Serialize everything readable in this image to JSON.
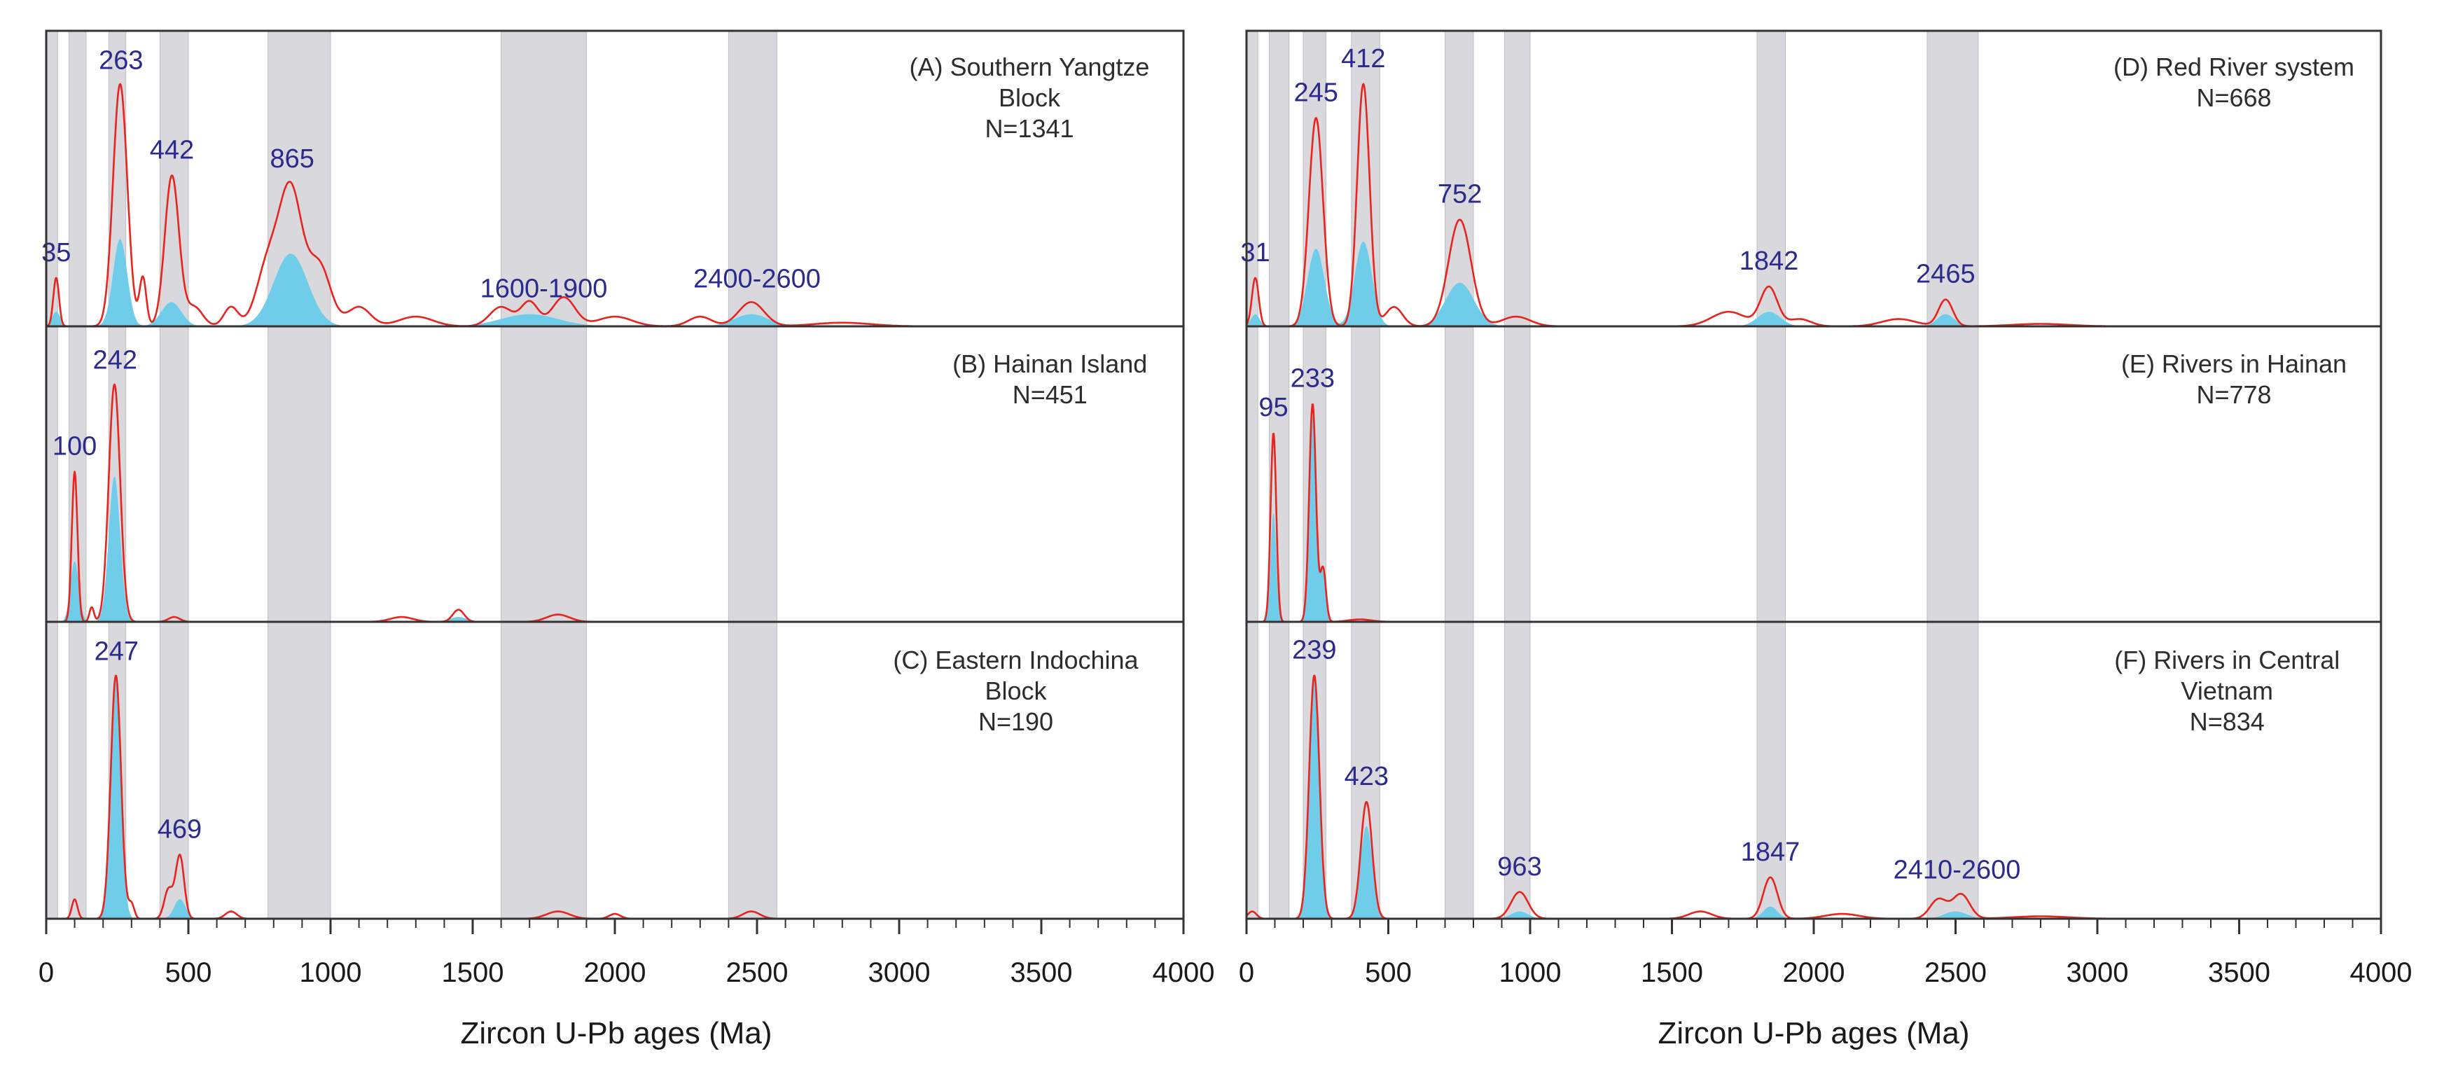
{
  "chart_data": [
    {
      "type": "area",
      "column": "left",
      "xlim": [
        0,
        4000
      ],
      "x_ticks": [
        0,
        500,
        1000,
        1500,
        2000,
        2500,
        3000,
        3500,
        4000
      ],
      "x_tick_labels": [
        "0",
        "500",
        "1000",
        "1500",
        "2000",
        "2500",
        "3000",
        "3500",
        "4000"
      ],
      "xlabel": "Zircon U-Pb ages (Ma)",
      "shaded_ranges": [
        [
          0,
          40
        ],
        [
          80,
          140
        ],
        [
          220,
          280
        ],
        [
          400,
          500
        ],
        [
          780,
          1000
        ],
        [
          1600,
          1900
        ],
        [
          2400,
          2570
        ]
      ],
      "panels": [
        {
          "label_lines": [
            "(A) Southern Yangtze",
            "Block",
            "N=1341"
          ],
          "n": 1341,
          "peak_labels": [
            {
              "age": 35,
              "text": "35"
            },
            {
              "age": 263,
              "text": "263"
            },
            {
              "age": 442,
              "text": "442"
            },
            {
              "age": 865,
              "text": "865"
            },
            {
              "age": 1750,
              "text": "1600-1900"
            },
            {
              "age": 2500,
              "text": "2400-2600"
            }
          ],
          "pdp_peaks": [
            {
              "age": 35,
              "h": 0.2,
              "w": 10
            },
            {
              "age": 260,
              "h": 1.0,
              "w": 25
            },
            {
              "age": 340,
              "h": 0.2,
              "w": 12
            },
            {
              "age": 442,
              "h": 0.62,
              "w": 25
            },
            {
              "age": 520,
              "h": 0.08,
              "w": 30
            },
            {
              "age": 650,
              "h": 0.08,
              "w": 25
            },
            {
              "age": 780,
              "h": 0.25,
              "w": 40
            },
            {
              "age": 860,
              "h": 0.55,
              "w": 40
            },
            {
              "age": 960,
              "h": 0.25,
              "w": 40
            },
            {
              "age": 1100,
              "h": 0.08,
              "w": 40
            },
            {
              "age": 1300,
              "h": 0.04,
              "w": 60
            },
            {
              "age": 1600,
              "h": 0.08,
              "w": 40
            },
            {
              "age": 1700,
              "h": 0.1,
              "w": 30
            },
            {
              "age": 1820,
              "h": 0.12,
              "w": 40
            },
            {
              "age": 2000,
              "h": 0.04,
              "w": 60
            },
            {
              "age": 2300,
              "h": 0.04,
              "w": 40
            },
            {
              "age": 2480,
              "h": 0.1,
              "w": 45
            },
            {
              "age": 2800,
              "h": 0.015,
              "w": 100
            }
          ],
          "kde_peaks": [
            {
              "age": 35,
              "h": 0.06,
              "w": 15
            },
            {
              "age": 260,
              "h": 0.36,
              "w": 25
            },
            {
              "age": 440,
              "h": 0.1,
              "w": 35
            },
            {
              "age": 860,
              "h": 0.3,
              "w": 60
            },
            {
              "age": 1700,
              "h": 0.05,
              "w": 100
            },
            {
              "age": 2480,
              "h": 0.05,
              "w": 60
            }
          ]
        },
        {
          "label_lines": [
            "(B) Hainan Island",
            "N=451"
          ],
          "n": 451,
          "peak_labels": [
            {
              "age": 100,
              "text": "100"
            },
            {
              "age": 242,
              "text": "242"
            }
          ],
          "pdp_peaks": [
            {
              "age": 100,
              "h": 0.62,
              "w": 10
            },
            {
              "age": 160,
              "h": 0.06,
              "w": 8
            },
            {
              "age": 240,
              "h": 0.98,
              "w": 20
            },
            {
              "age": 450,
              "h": 0.02,
              "w": 20
            },
            {
              "age": 1250,
              "h": 0.02,
              "w": 40
            },
            {
              "age": 1450,
              "h": 0.05,
              "w": 20
            },
            {
              "age": 1800,
              "h": 0.03,
              "w": 40
            }
          ],
          "kde_peaks": [
            {
              "age": 100,
              "h": 0.25,
              "w": 15
            },
            {
              "age": 240,
              "h": 0.6,
              "w": 20
            },
            {
              "age": 1450,
              "h": 0.02,
              "w": 30
            }
          ]
        },
        {
          "label_lines": [
            "(C)  Eastern Indochina",
            "Block",
            "N=190"
          ],
          "n": 190,
          "peak_labels": [
            {
              "age": 247,
              "text": "247"
            },
            {
              "age": 469,
              "text": "469"
            }
          ],
          "pdp_peaks": [
            {
              "age": 100,
              "h": 0.08,
              "w": 10
            },
            {
              "age": 245,
              "h": 1.0,
              "w": 18
            },
            {
              "age": 300,
              "h": 0.06,
              "w": 10
            },
            {
              "age": 430,
              "h": 0.12,
              "w": 15
            },
            {
              "age": 470,
              "h": 0.26,
              "w": 15
            },
            {
              "age": 650,
              "h": 0.03,
              "w": 20
            },
            {
              "age": 1800,
              "h": 0.03,
              "w": 40
            },
            {
              "age": 2000,
              "h": 0.02,
              "w": 20
            },
            {
              "age": 2480,
              "h": 0.03,
              "w": 30
            }
          ],
          "kde_peaks": [
            {
              "age": 245,
              "h": 0.98,
              "w": 18
            },
            {
              "age": 470,
              "h": 0.08,
              "w": 20
            }
          ]
        }
      ]
    },
    {
      "type": "area",
      "column": "right",
      "xlim": [
        0,
        4000
      ],
      "x_ticks": [
        0,
        500,
        1000,
        1500,
        2000,
        2500,
        3000,
        3500,
        4000
      ],
      "x_tick_labels": [
        "0",
        "500",
        "1000",
        "1500",
        "2000",
        "2500",
        "3000",
        "3500",
        "4000"
      ],
      "xlabel": "Zircon U-Pb ages (Ma)",
      "shaded_ranges": [
        [
          0,
          40
        ],
        [
          80,
          150
        ],
        [
          200,
          280
        ],
        [
          370,
          470
        ],
        [
          700,
          800
        ],
        [
          910,
          1000
        ],
        [
          1800,
          1900
        ],
        [
          2400,
          2580
        ]
      ],
      "panels": [
        {
          "label_lines": [
            "(D) Red River system",
            "N=668"
          ],
          "n": 668,
          "peak_labels": [
            {
              "age": 31,
              "text": "31"
            },
            {
              "age": 245,
              "text": "245"
            },
            {
              "age": 412,
              "text": "412"
            },
            {
              "age": 752,
              "text": "752"
            },
            {
              "age": 1842,
              "text": "1842"
            },
            {
              "age": 2465,
              "text": "2465"
            }
          ],
          "pdp_peaks": [
            {
              "age": 31,
              "h": 0.2,
              "w": 12
            },
            {
              "age": 245,
              "h": 0.86,
              "w": 25
            },
            {
              "age": 412,
              "h": 1.0,
              "w": 22
            },
            {
              "age": 520,
              "h": 0.08,
              "w": 30
            },
            {
              "age": 752,
              "h": 0.44,
              "w": 40
            },
            {
              "age": 950,
              "h": 0.04,
              "w": 50
            },
            {
              "age": 1700,
              "h": 0.06,
              "w": 60
            },
            {
              "age": 1842,
              "h": 0.16,
              "w": 30
            },
            {
              "age": 1950,
              "h": 0.03,
              "w": 40
            },
            {
              "age": 2300,
              "h": 0.03,
              "w": 60
            },
            {
              "age": 2465,
              "h": 0.11,
              "w": 25
            },
            {
              "age": 2800,
              "h": 0.01,
              "w": 100
            }
          ],
          "kde_peaks": [
            {
              "age": 31,
              "h": 0.05,
              "w": 15
            },
            {
              "age": 245,
              "h": 0.32,
              "w": 30
            },
            {
              "age": 412,
              "h": 0.35,
              "w": 30
            },
            {
              "age": 752,
              "h": 0.18,
              "w": 50
            },
            {
              "age": 1842,
              "h": 0.06,
              "w": 40
            },
            {
              "age": 2465,
              "h": 0.05,
              "w": 30
            }
          ]
        },
        {
          "label_lines": [
            "(E) Rivers in Hainan",
            "N=778"
          ],
          "n": 778,
          "peak_labels": [
            {
              "age": 95,
              "text": "95"
            },
            {
              "age": 233,
              "text": "233"
            }
          ],
          "pdp_peaks": [
            {
              "age": 95,
              "h": 0.78,
              "w": 10
            },
            {
              "age": 233,
              "h": 0.9,
              "w": 12
            },
            {
              "age": 270,
              "h": 0.22,
              "w": 10
            },
            {
              "age": 400,
              "h": 0.01,
              "w": 40
            }
          ],
          "kde_peaks": [
            {
              "age": 95,
              "h": 0.45,
              "w": 10
            },
            {
              "age": 233,
              "h": 0.85,
              "w": 12
            },
            {
              "age": 270,
              "h": 0.22,
              "w": 10
            }
          ]
        },
        {
          "label_lines": [
            "(F) Rivers in Central",
            "Vietnam",
            "N=834"
          ],
          "n": 834,
          "peak_labels": [
            {
              "age": 239,
              "text": "239"
            },
            {
              "age": 423,
              "text": "423"
            },
            {
              "age": 963,
              "text": "963"
            },
            {
              "age": 1847,
              "text": "1847"
            },
            {
              "age": 2505,
              "text": "2410-2600"
            }
          ],
          "pdp_peaks": [
            {
              "age": 20,
              "h": 0.03,
              "w": 15
            },
            {
              "age": 239,
              "h": 1.0,
              "w": 18
            },
            {
              "age": 423,
              "h": 0.48,
              "w": 20
            },
            {
              "age": 963,
              "h": 0.11,
              "w": 30
            },
            {
              "age": 1600,
              "h": 0.03,
              "w": 40
            },
            {
              "age": 1847,
              "h": 0.17,
              "w": 25
            },
            {
              "age": 2100,
              "h": 0.02,
              "w": 60
            },
            {
              "age": 2440,
              "h": 0.08,
              "w": 30
            },
            {
              "age": 2520,
              "h": 0.1,
              "w": 30
            },
            {
              "age": 2800,
              "h": 0.01,
              "w": 100
            }
          ],
          "kde_peaks": [
            {
              "age": 239,
              "h": 0.98,
              "w": 18
            },
            {
              "age": 423,
              "h": 0.38,
              "w": 22
            },
            {
              "age": 963,
              "h": 0.03,
              "w": 30
            },
            {
              "age": 1847,
              "h": 0.05,
              "w": 25
            },
            {
              "age": 2500,
              "h": 0.03,
              "w": 40
            }
          ]
        }
      ]
    }
  ],
  "colors": {
    "pdp_line": "#e8241e",
    "kde_fill": "#6fcdea",
    "shade": "#d9d9dd",
    "peak_label": "#2b2a8f",
    "panel_label": "#2d2d2d",
    "axis": "#333333"
  }
}
